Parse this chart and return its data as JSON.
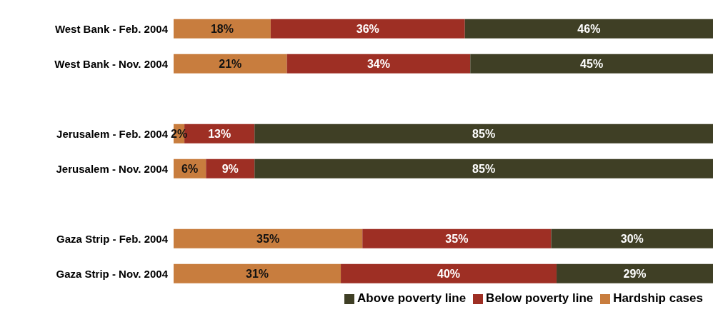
{
  "chart_data": {
    "type": "bar",
    "orientation": "horizontal",
    "stacked": true,
    "legend": "bottom",
    "categories": [
      "West Bank - Feb. 2004",
      "West Bank - Nov. 2004",
      null,
      "Jerusalem - Feb. 2004",
      "Jerusalem - Nov. 2004",
      null,
      "Gaza Strip - Feb. 2004",
      "Gaza Strip - Nov. 2004"
    ],
    "series": [
      {
        "name": "Hardship cases",
        "color": "#c87d3e",
        "values": [
          18,
          21,
          null,
          2,
          6,
          null,
          35,
          31
        ],
        "value_labels": [
          "18%",
          "21%",
          null,
          "2%",
          "6%",
          null,
          "35%",
          "31%"
        ]
      },
      {
        "name": "Below poverty line",
        "color": "#9e2f24",
        "values": [
          36,
          34,
          null,
          13,
          9,
          null,
          35,
          40
        ],
        "value_labels": [
          "36%",
          "34%",
          null,
          "13%",
          "9%",
          null,
          "35%",
          "40%"
        ]
      },
      {
        "name": "Above poverty line",
        "color": "#3f3f25",
        "values": [
          46,
          45,
          null,
          85,
          85,
          null,
          30,
          29
        ],
        "value_labels": [
          "46%",
          "45%",
          null,
          "85%",
          "85%",
          null,
          "30%",
          "29%"
        ]
      }
    ]
  }
}
